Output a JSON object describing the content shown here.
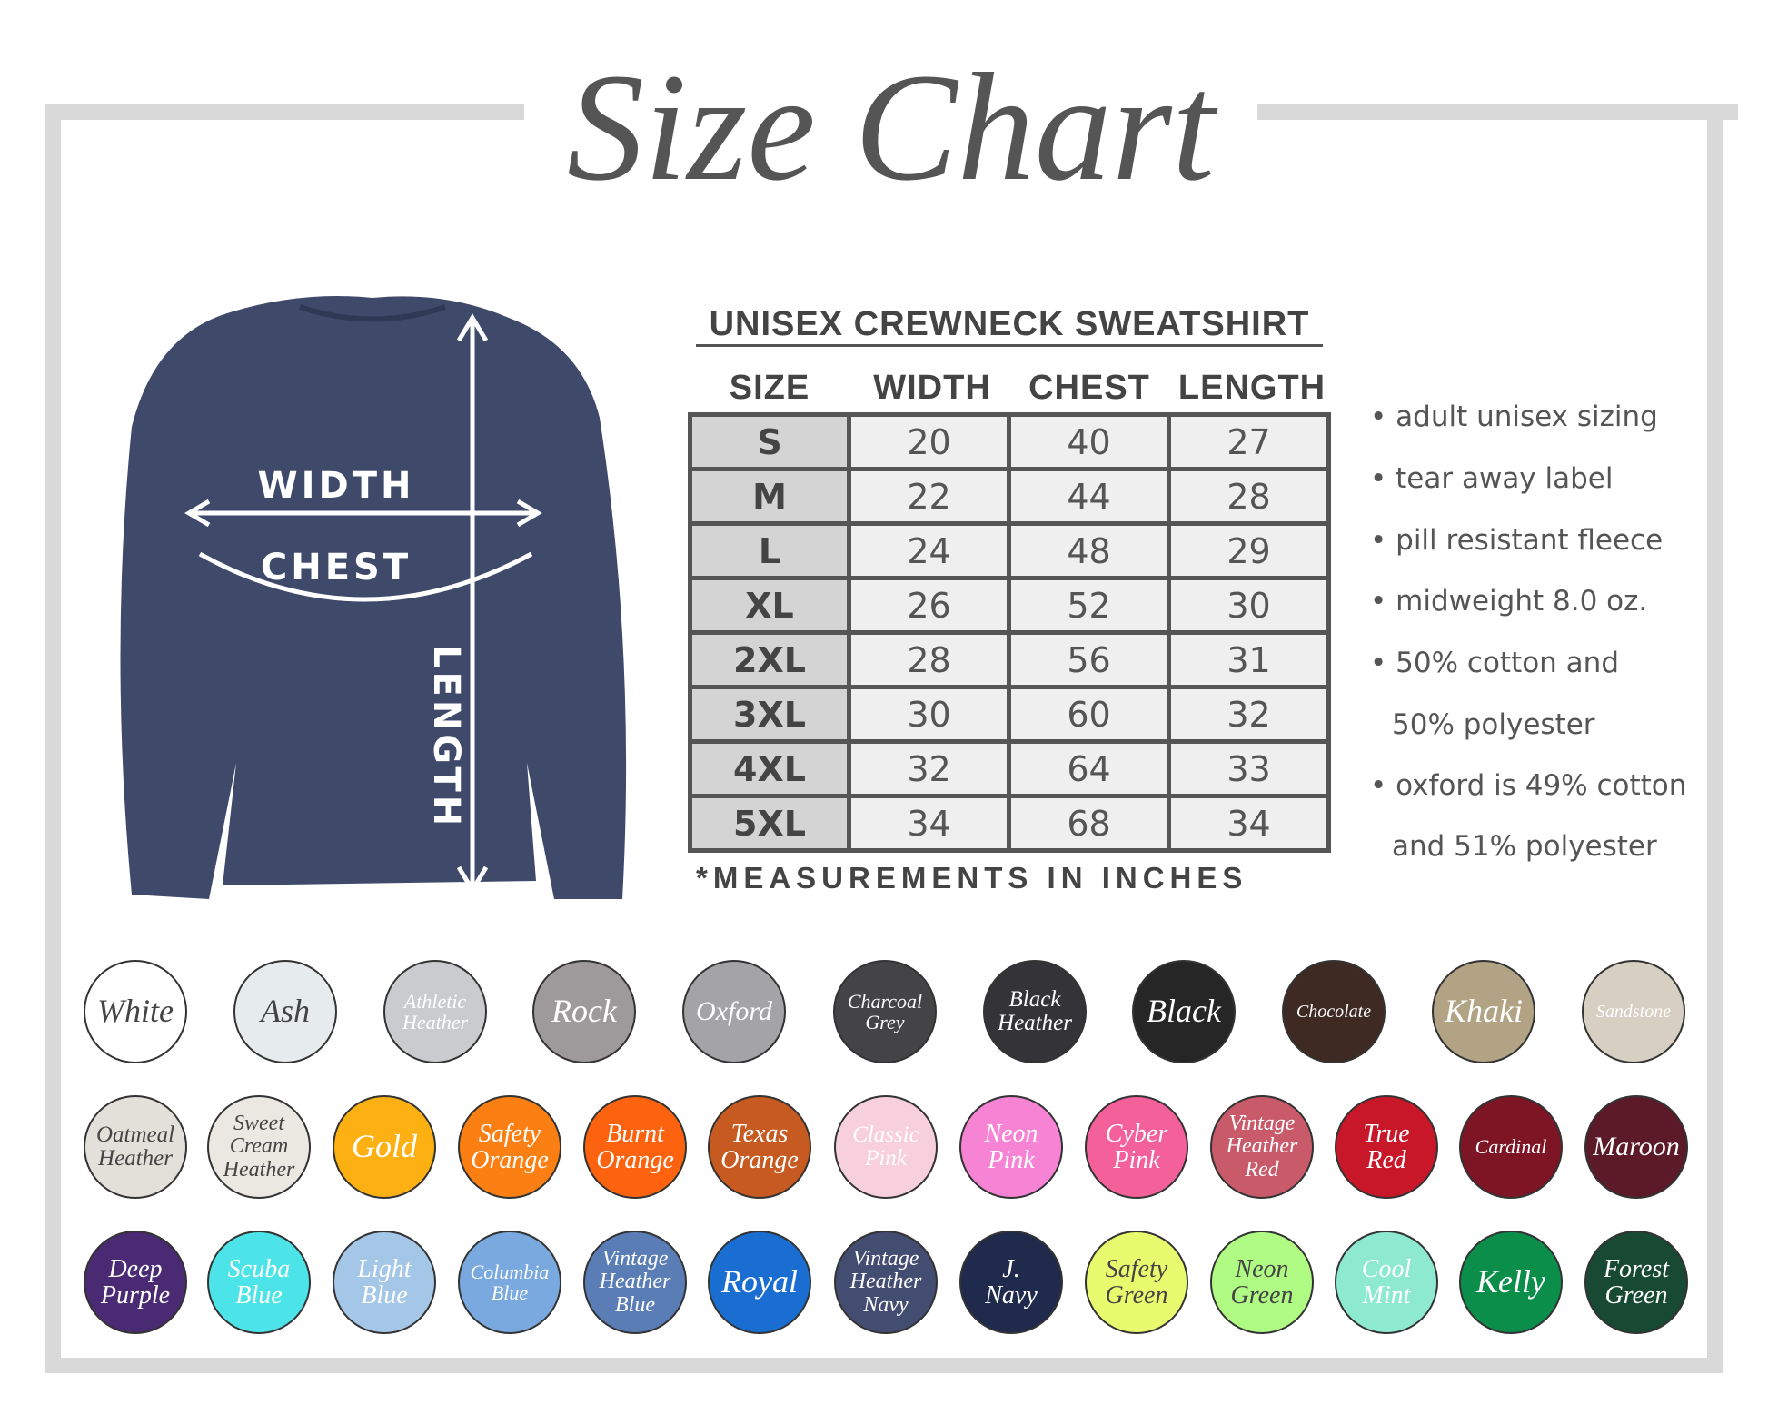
{
  "title": "Size Chart",
  "table": {
    "heading": "UNISEX CREWNECK SWEATSHIRT",
    "columns": [
      "SIZE",
      "WIDTH",
      "CHEST",
      "LENGTH"
    ],
    "rows": [
      [
        "S",
        "20",
        "40",
        "27"
      ],
      [
        "M",
        "22",
        "44",
        "28"
      ],
      [
        "L",
        "24",
        "48",
        "29"
      ],
      [
        "XL",
        "26",
        "52",
        "30"
      ],
      [
        "2XL",
        "28",
        "56",
        "31"
      ],
      [
        "3XL",
        "30",
        "60",
        "32"
      ],
      [
        "4XL",
        "32",
        "64",
        "33"
      ],
      [
        "5XL",
        "34",
        "68",
        "34"
      ]
    ],
    "note": "*MEASUREMENTS IN INCHES"
  },
  "diagram": {
    "width": "WIDTH",
    "chest": "CHEST",
    "length": "LENGTH",
    "shirt_color": "#3f4a6b"
  },
  "features": [
    "• adult unisex sizing",
    "• tear away label",
    "• pill resistant fleece",
    "• midweight 8.0 oz.",
    "• 50% cotton and",
    "50% polyester",
    "• oxford is 49% cotton",
    "and 51% polyester"
  ],
  "swatches": [
    [
      {
        "lines": [
          "White"
        ],
        "bg": "#ffffff",
        "fg": "#444"
      },
      {
        "lines": [
          "Ash"
        ],
        "bg": "#e6ebee",
        "fg": "#444"
      },
      {
        "lines": [
          "Athletic",
          "Heather"
        ],
        "bg": "#c9cbcf",
        "fg": "#fff"
      },
      {
        "lines": [
          "Rock"
        ],
        "bg": "#9e9a9b",
        "fg": "#fff"
      },
      {
        "lines": [
          "Oxford"
        ],
        "bg": "#a4a4a6",
        "fg": "#fff"
      },
      {
        "lines": [
          "Charcoal",
          "Grey"
        ],
        "bg": "#444446",
        "fg": "#fff"
      },
      {
        "lines": [
          "Black",
          "Heather"
        ],
        "bg": "#333338",
        "fg": "#fff"
      },
      {
        "lines": [
          "Black"
        ],
        "bg": "#262626",
        "fg": "#fff"
      },
      {
        "lines": [
          "Chocolate"
        ],
        "bg": "#3e2a22",
        "fg": "#fff"
      },
      {
        "lines": [
          "Khaki"
        ],
        "bg": "#b2a385",
        "fg": "#fff"
      },
      {
        "lines": [
          "Sandstone"
        ],
        "bg": "#d7cfc1",
        "fg": "#fff"
      }
    ],
    [
      {
        "lines": [
          "Oatmeal",
          "Heather"
        ],
        "bg": "#e3e0da",
        "fg": "#444"
      },
      {
        "lines": [
          "Sweet",
          "Cream",
          "Heather"
        ],
        "bg": "#ebe8e2",
        "fg": "#444"
      },
      {
        "lines": [
          "Gold"
        ],
        "bg": "#fdb012",
        "fg": "#fff"
      },
      {
        "lines": [
          "Safety",
          "Orange"
        ],
        "bg": "#fb7f12",
        "fg": "#fff"
      },
      {
        "lines": [
          "Burnt",
          "Orange"
        ],
        "bg": "#fd630f",
        "fg": "#fff"
      },
      {
        "lines": [
          "Texas",
          "Orange"
        ],
        "bg": "#c65a20",
        "fg": "#fff"
      },
      {
        "lines": [
          "Classic",
          "Pink"
        ],
        "bg": "#f8cfdc",
        "fg": "#fff"
      },
      {
        "lines": [
          "Neon",
          "Pink"
        ],
        "bg": "#f783d4",
        "fg": "#fff"
      },
      {
        "lines": [
          "Cyber",
          "Pink"
        ],
        "bg": "#f4609a",
        "fg": "#fff"
      },
      {
        "lines": [
          "Vintage",
          "Heather",
          "Red"
        ],
        "bg": "#c85a6a",
        "fg": "#fff"
      },
      {
        "lines": [
          "True",
          "Red"
        ],
        "bg": "#c9172a",
        "fg": "#fff"
      },
      {
        "lines": [
          "Cardinal"
        ],
        "bg": "#7d1524",
        "fg": "#fff"
      },
      {
        "lines": [
          "Maroon"
        ],
        "bg": "#5c1a28",
        "fg": "#fff"
      }
    ],
    [
      {
        "lines": [
          "Deep",
          "Purple"
        ],
        "bg": "#4a2a73",
        "fg": "#fff"
      },
      {
        "lines": [
          "Scuba",
          "Blue"
        ],
        "bg": "#4ce4e8",
        "fg": "#fff"
      },
      {
        "lines": [
          "Light",
          "Blue"
        ],
        "bg": "#a4c6e7",
        "fg": "#fff"
      },
      {
        "lines": [
          "Columbia",
          "Blue"
        ],
        "bg": "#79a9de",
        "fg": "#fff"
      },
      {
        "lines": [
          "Vintage",
          "Heather",
          "Blue"
        ],
        "bg": "#5b7db5",
        "fg": "#fff"
      },
      {
        "lines": [
          "Royal"
        ],
        "bg": "#1b6ed1",
        "fg": "#fff"
      },
      {
        "lines": [
          "Vintage",
          "Heather",
          "Navy"
        ],
        "bg": "#434d71",
        "fg": "#fff"
      },
      {
        "lines": [
          "J.",
          "Navy"
        ],
        "bg": "#1f2a4d",
        "fg": "#fff"
      },
      {
        "lines": [
          "Safety",
          "Green"
        ],
        "bg": "#e8fb6e",
        "fg": "#444"
      },
      {
        "lines": [
          "Neon",
          "Green"
        ],
        "bg": "#b0fb84",
        "fg": "#444"
      },
      {
        "lines": [
          "Cool",
          "Mint"
        ],
        "bg": "#8de9d0",
        "fg": "#fff"
      },
      {
        "lines": [
          "Kelly"
        ],
        "bg": "#0a8e4a",
        "fg": "#fff"
      },
      {
        "lines": [
          "Forest",
          "Green"
        ],
        "bg": "#184a33",
        "fg": "#fff"
      }
    ]
  ]
}
